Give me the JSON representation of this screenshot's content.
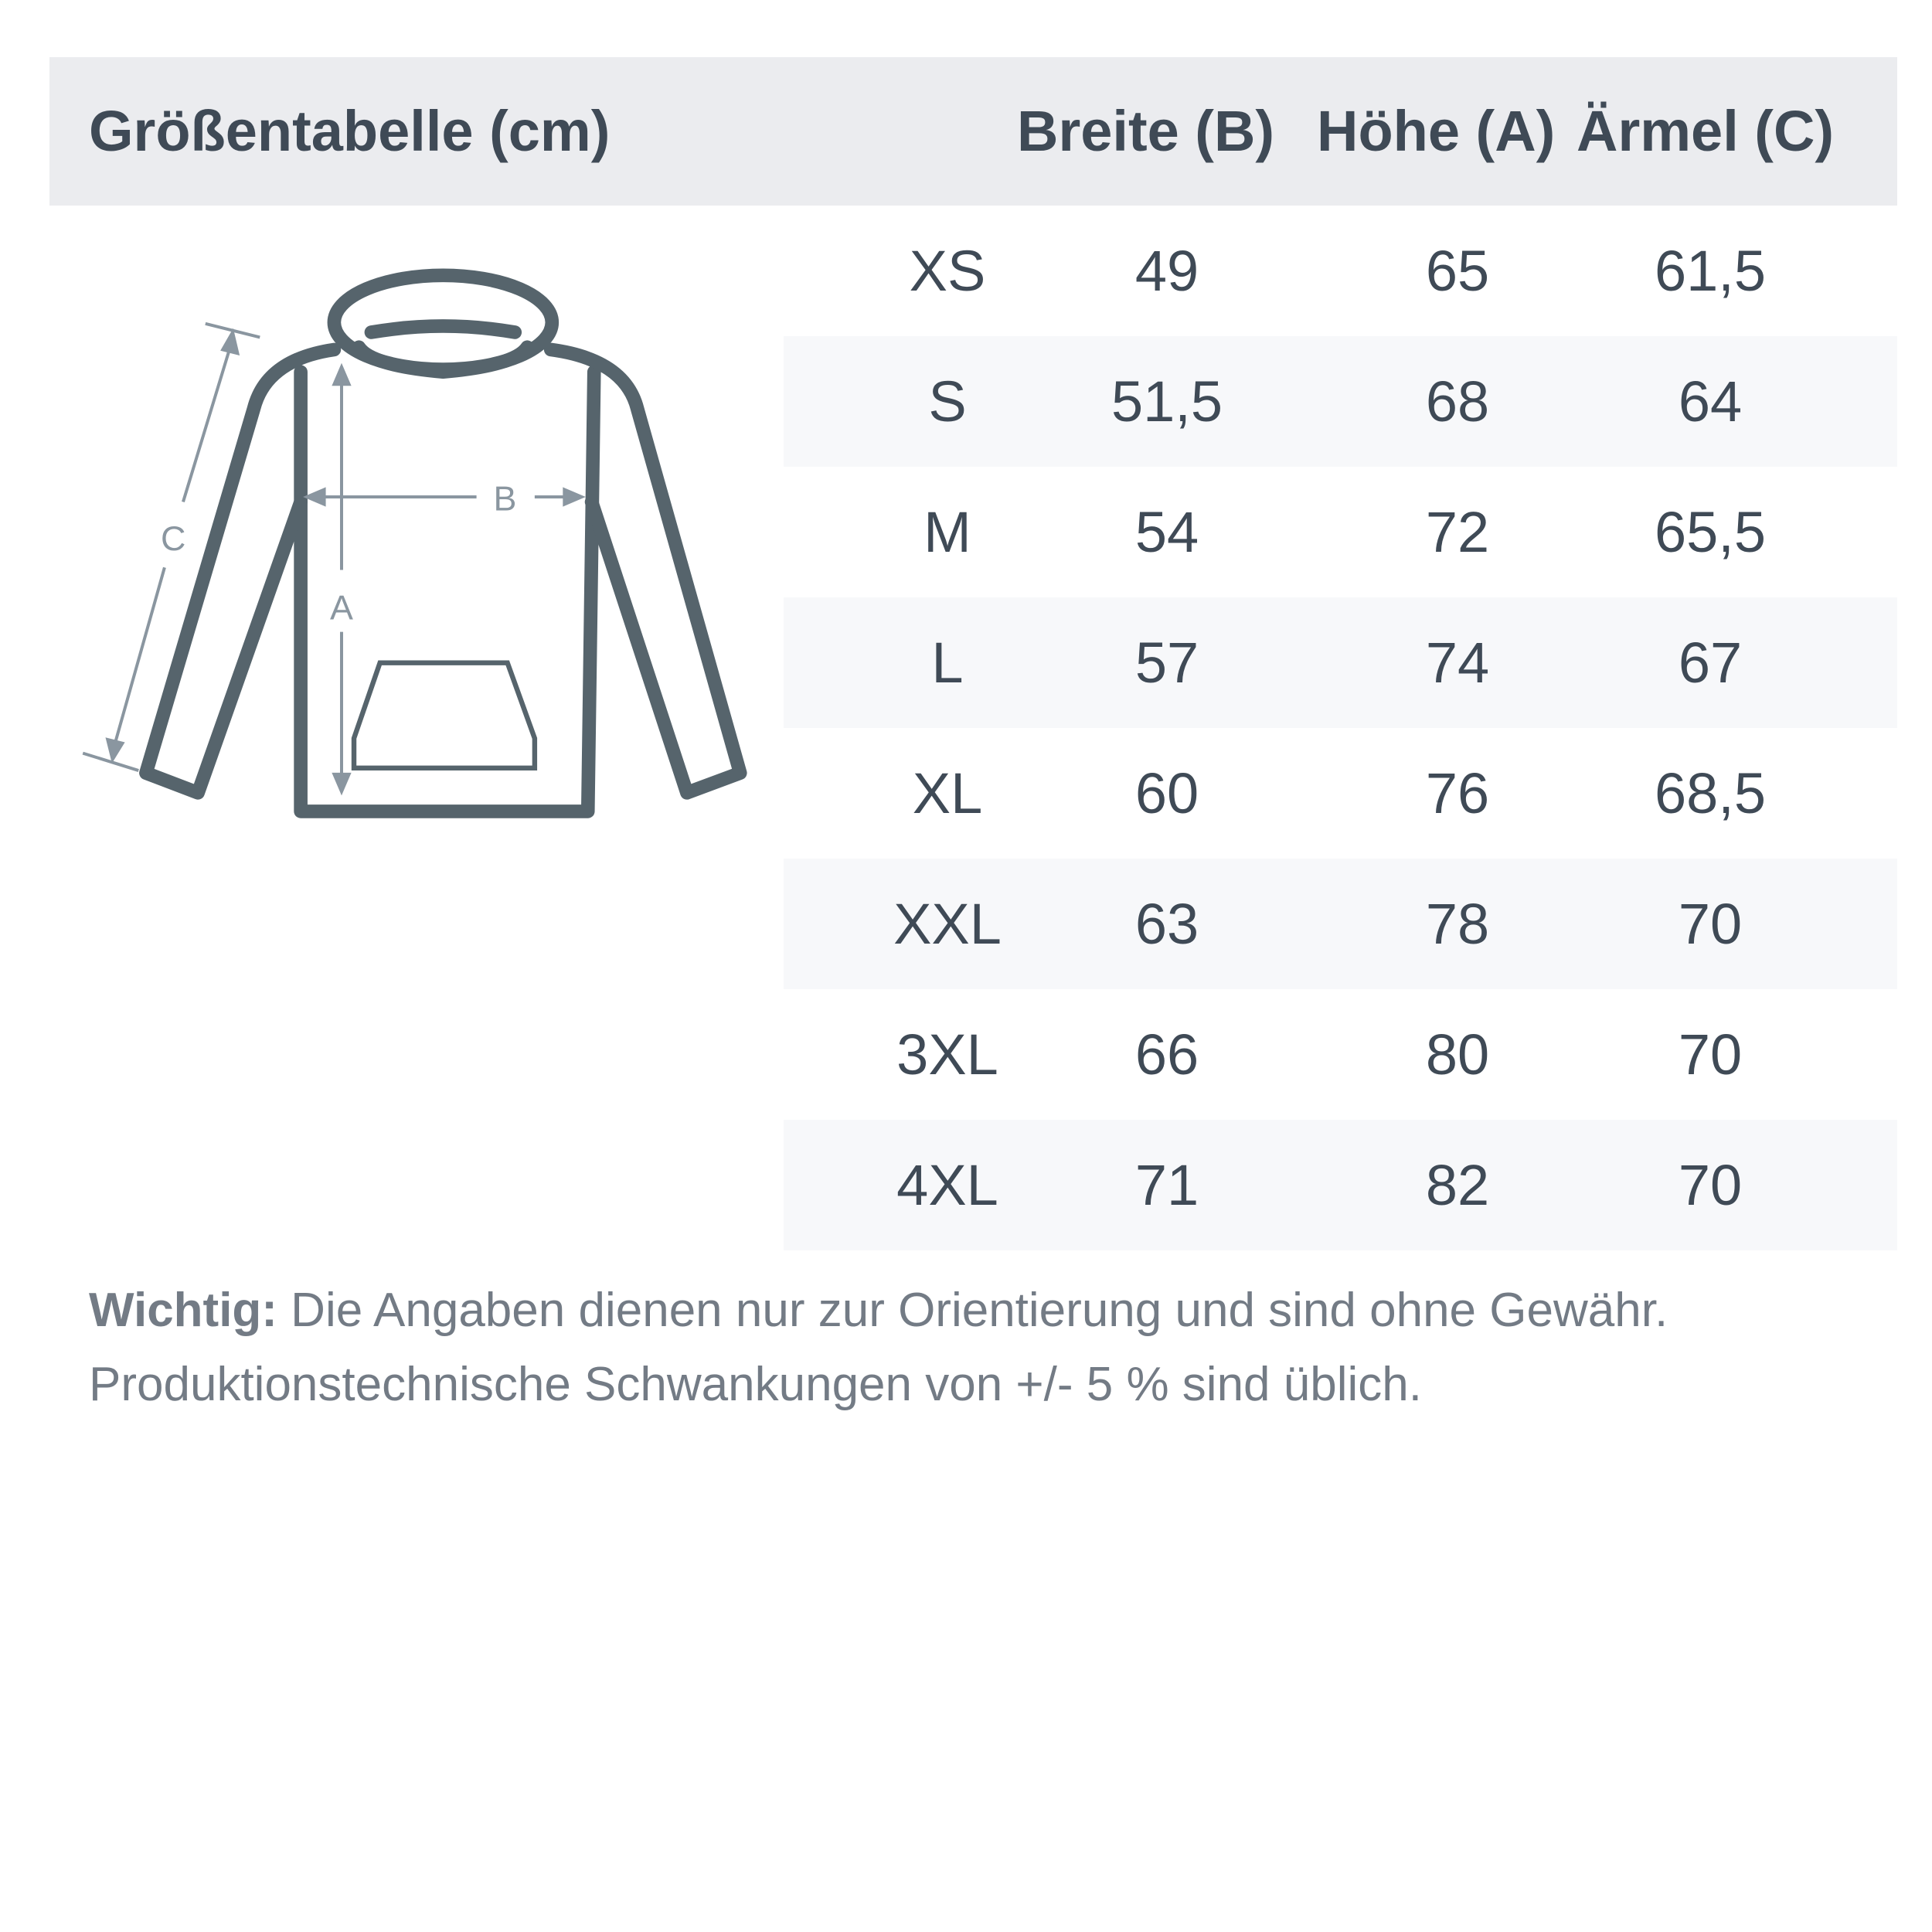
{
  "header": {
    "title": "Größentabelle (cm)",
    "columns": [
      "Breite (B)",
      "Höhe (A)",
      "Ärmel (C)"
    ]
  },
  "diagram": {
    "labels": {
      "a": "A",
      "b": "B",
      "c": "C"
    },
    "line_color": "#56646c",
    "arrow_color": "#8a96a0"
  },
  "rows": [
    {
      "size": "XS",
      "breite": "49",
      "hoehe": "65",
      "aermel": "61,5"
    },
    {
      "size": "S",
      "breite": "51,5",
      "hoehe": "68",
      "aermel": "64"
    },
    {
      "size": "M",
      "breite": "54",
      "hoehe": "72",
      "aermel": "65,5"
    },
    {
      "size": "L",
      "breite": "57",
      "hoehe": "74",
      "aermel": "67"
    },
    {
      "size": "XL",
      "breite": "60",
      "hoehe": "76",
      "aermel": "68,5"
    },
    {
      "size": "XXL",
      "breite": "63",
      "hoehe": "78",
      "aermel": "70"
    },
    {
      "size": "3XL",
      "breite": "66",
      "hoehe": "80",
      "aermel": "70"
    },
    {
      "size": "4XL",
      "breite": "71",
      "hoehe": "82",
      "aermel": "70"
    }
  ],
  "note": {
    "bold": "Wichtig:",
    "line1": " Die Angaben dienen nur zur Orientierung und sind ohne Gewähr.",
    "line2": "Produktionstechnische Schwankungen von +/- 5 % sind üblich."
  }
}
